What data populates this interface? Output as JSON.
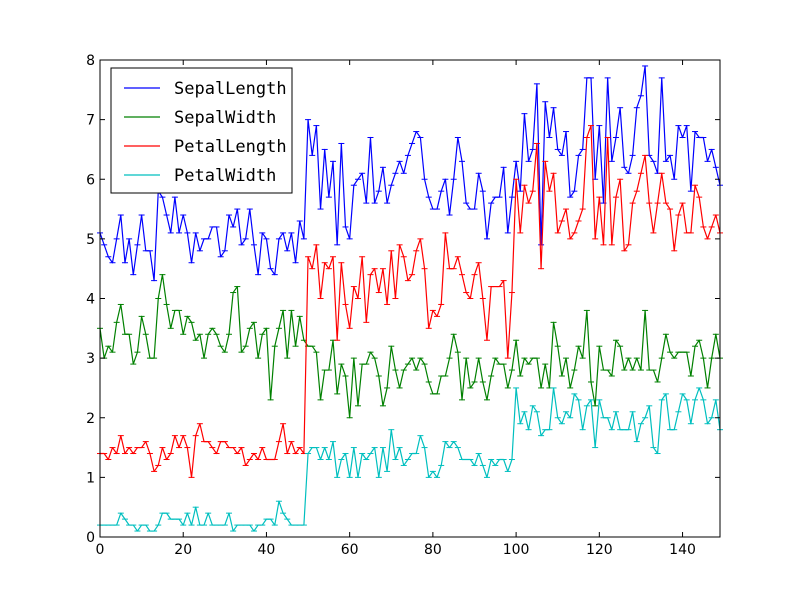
{
  "chart_data": {
    "type": "line",
    "x": [
      0,
      1,
      2,
      3,
      4,
      5,
      6,
      7,
      8,
      9,
      10,
      11,
      12,
      13,
      14,
      15,
      16,
      17,
      18,
      19,
      20,
      21,
      22,
      23,
      24,
      25,
      26,
      27,
      28,
      29,
      30,
      31,
      32,
      33,
      34,
      35,
      36,
      37,
      38,
      39,
      40,
      41,
      42,
      43,
      44,
      45,
      46,
      47,
      48,
      49,
      50,
      51,
      52,
      53,
      54,
      55,
      56,
      57,
      58,
      59,
      60,
      61,
      62,
      63,
      64,
      65,
      66,
      67,
      68,
      69,
      70,
      71,
      72,
      73,
      74,
      75,
      76,
      77,
      78,
      79,
      80,
      81,
      82,
      83,
      84,
      85,
      86,
      87,
      88,
      89,
      90,
      91,
      92,
      93,
      94,
      95,
      96,
      97,
      98,
      99,
      100,
      101,
      102,
      103,
      104,
      105,
      106,
      107,
      108,
      109,
      110,
      111,
      112,
      113,
      114,
      115,
      116,
      117,
      118,
      119,
      120,
      121,
      122,
      123,
      124,
      125,
      126,
      127,
      128,
      129,
      130,
      131,
      132,
      133,
      134,
      135,
      136,
      137,
      138,
      139,
      140,
      141,
      142,
      143,
      144,
      145,
      146,
      147,
      148,
      149
    ],
    "series": [
      {
        "name": "SepalLength",
        "color": "#0000ff",
        "values": [
          5.1,
          4.9,
          4.7,
          4.6,
          5.0,
          5.4,
          4.6,
          5.0,
          4.4,
          4.9,
          5.4,
          4.8,
          4.8,
          4.3,
          5.8,
          5.7,
          5.4,
          5.1,
          5.7,
          5.1,
          5.4,
          5.1,
          4.6,
          5.1,
          4.8,
          5.0,
          5.0,
          5.2,
          5.2,
          4.7,
          4.8,
          5.4,
          5.2,
          5.5,
          4.9,
          5.0,
          5.5,
          4.9,
          4.4,
          5.1,
          5.0,
          4.5,
          4.4,
          5.0,
          5.1,
          4.8,
          5.1,
          4.6,
          5.3,
          5.0,
          7.0,
          6.4,
          6.9,
          5.5,
          6.5,
          5.7,
          6.3,
          4.9,
          6.6,
          5.2,
          5.0,
          5.9,
          6.0,
          6.1,
          5.6,
          6.7,
          5.6,
          5.8,
          6.2,
          5.6,
          5.9,
          6.1,
          6.3,
          6.1,
          6.4,
          6.6,
          6.8,
          6.7,
          6.0,
          5.7,
          5.5,
          5.5,
          5.8,
          6.0,
          5.4,
          6.0,
          6.7,
          6.3,
          5.6,
          5.5,
          5.5,
          6.1,
          5.8,
          5.0,
          5.6,
          5.7,
          5.7,
          6.2,
          5.1,
          5.7,
          6.3,
          5.8,
          7.1,
          6.3,
          6.5,
          7.6,
          4.9,
          7.3,
          6.7,
          7.2,
          6.5,
          6.4,
          6.8,
          5.7,
          5.8,
          6.4,
          6.5,
          7.7,
          7.7,
          6.0,
          6.9,
          5.6,
          7.7,
          6.3,
          6.7,
          7.2,
          6.2,
          6.1,
          6.4,
          7.2,
          7.4,
          7.9,
          6.4,
          6.3,
          6.1,
          7.7,
          6.3,
          6.4,
          6.0,
          6.9,
          6.7,
          6.9,
          5.8,
          6.8,
          6.7,
          6.7,
          6.3,
          6.5,
          6.2,
          5.9
        ]
      },
      {
        "name": "SepalWidth",
        "color": "#008000",
        "values": [
          3.5,
          3.0,
          3.2,
          3.1,
          3.6,
          3.9,
          3.4,
          3.4,
          2.9,
          3.1,
          3.7,
          3.4,
          3.0,
          3.0,
          4.0,
          4.4,
          3.9,
          3.5,
          3.8,
          3.8,
          3.4,
          3.7,
          3.6,
          3.3,
          3.4,
          3.0,
          3.4,
          3.5,
          3.4,
          3.2,
          3.1,
          3.4,
          4.1,
          4.2,
          3.1,
          3.2,
          3.5,
          3.6,
          3.0,
          3.4,
          3.5,
          2.3,
          3.2,
          3.5,
          3.8,
          3.0,
          3.8,
          3.2,
          3.7,
          3.3,
          3.2,
          3.2,
          3.1,
          2.3,
          2.8,
          2.8,
          3.3,
          2.4,
          2.9,
          2.7,
          2.0,
          3.0,
          2.2,
          2.9,
          2.9,
          3.1,
          3.0,
          2.7,
          2.2,
          2.5,
          3.2,
          2.8,
          2.5,
          2.8,
          2.9,
          3.0,
          2.8,
          3.0,
          2.9,
          2.6,
          2.4,
          2.4,
          2.7,
          2.7,
          3.0,
          3.4,
          3.1,
          2.3,
          3.0,
          2.5,
          2.6,
          3.0,
          2.6,
          2.3,
          2.7,
          3.0,
          2.9,
          2.9,
          2.5,
          2.8,
          3.3,
          2.7,
          3.0,
          2.9,
          3.0,
          3.0,
          2.5,
          2.9,
          2.5,
          3.6,
          3.2,
          2.7,
          3.0,
          2.5,
          2.8,
          3.2,
          3.0,
          3.8,
          2.6,
          2.2,
          3.2,
          2.8,
          2.8,
          2.7,
          3.3,
          3.2,
          2.8,
          3.0,
          2.8,
          3.0,
          2.8,
          3.8,
          2.8,
          2.8,
          2.6,
          3.0,
          3.4,
          3.1,
          3.0,
          3.1,
          3.1,
          3.1,
          2.7,
          3.2,
          3.3,
          3.0,
          2.5,
          3.0,
          3.4,
          3.0
        ]
      },
      {
        "name": "PetalLength",
        "color": "#ff0000",
        "values": [
          1.4,
          1.4,
          1.3,
          1.5,
          1.4,
          1.7,
          1.4,
          1.5,
          1.4,
          1.5,
          1.5,
          1.6,
          1.4,
          1.1,
          1.2,
          1.5,
          1.3,
          1.4,
          1.7,
          1.5,
          1.7,
          1.5,
          1.0,
          1.7,
          1.9,
          1.6,
          1.6,
          1.5,
          1.4,
          1.6,
          1.6,
          1.5,
          1.5,
          1.4,
          1.5,
          1.2,
          1.3,
          1.4,
          1.3,
          1.5,
          1.3,
          1.3,
          1.3,
          1.6,
          1.9,
          1.4,
          1.6,
          1.4,
          1.5,
          1.4,
          4.7,
          4.5,
          4.9,
          4.0,
          4.6,
          4.5,
          4.7,
          3.3,
          4.6,
          3.9,
          3.5,
          4.2,
          4.0,
          4.7,
          3.6,
          4.4,
          4.5,
          4.1,
          4.5,
          3.9,
          4.8,
          4.0,
          4.9,
          4.7,
          4.3,
          4.4,
          4.8,
          5.0,
          4.5,
          3.5,
          3.8,
          3.7,
          3.9,
          5.1,
          4.5,
          4.5,
          4.7,
          4.4,
          4.1,
          4.0,
          4.4,
          4.6,
          4.0,
          3.3,
          4.2,
          4.2,
          4.2,
          4.3,
          3.0,
          4.1,
          6.0,
          5.1,
          5.9,
          5.6,
          5.8,
          6.6,
          4.5,
          6.3,
          5.8,
          6.1,
          5.1,
          5.3,
          5.5,
          5.0,
          5.1,
          5.3,
          5.5,
          6.7,
          6.9,
          5.0,
          5.7,
          4.9,
          6.7,
          4.9,
          5.7,
          6.0,
          4.8,
          4.9,
          5.6,
          5.8,
          6.1,
          6.4,
          5.6,
          5.1,
          5.6,
          6.1,
          5.6,
          5.5,
          4.8,
          5.4,
          5.6,
          5.1,
          5.1,
          5.9,
          5.7,
          5.2,
          5.0,
          5.2,
          5.4,
          5.1
        ]
      },
      {
        "name": "PetalWidth",
        "color": "#00bfbf",
        "values": [
          0.2,
          0.2,
          0.2,
          0.2,
          0.2,
          0.4,
          0.3,
          0.2,
          0.2,
          0.1,
          0.2,
          0.2,
          0.1,
          0.1,
          0.2,
          0.4,
          0.4,
          0.3,
          0.3,
          0.3,
          0.2,
          0.4,
          0.2,
          0.5,
          0.2,
          0.2,
          0.4,
          0.2,
          0.2,
          0.2,
          0.2,
          0.4,
          0.1,
          0.2,
          0.2,
          0.2,
          0.2,
          0.1,
          0.2,
          0.2,
          0.3,
          0.3,
          0.2,
          0.6,
          0.4,
          0.3,
          0.2,
          0.2,
          0.2,
          0.2,
          1.4,
          1.5,
          1.5,
          1.3,
          1.5,
          1.3,
          1.6,
          1.0,
          1.3,
          1.4,
          1.0,
          1.5,
          1.0,
          1.4,
          1.3,
          1.4,
          1.5,
          1.0,
          1.5,
          1.1,
          1.8,
          1.3,
          1.5,
          1.2,
          1.3,
          1.4,
          1.4,
          1.7,
          1.5,
          1.0,
          1.1,
          1.0,
          1.2,
          1.6,
          1.5,
          1.6,
          1.5,
          1.3,
          1.3,
          1.3,
          1.2,
          1.4,
          1.2,
          1.0,
          1.3,
          1.2,
          1.3,
          1.3,
          1.1,
          1.3,
          2.5,
          1.9,
          2.1,
          1.8,
          2.2,
          2.1,
          1.7,
          1.8,
          1.8,
          2.5,
          2.0,
          1.9,
          2.1,
          2.0,
          2.4,
          2.3,
          1.8,
          2.2,
          2.3,
          1.5,
          2.3,
          2.0,
          2.0,
          1.8,
          2.1,
          1.8,
          1.8,
          1.8,
          2.1,
          1.6,
          1.9,
          2.0,
          2.2,
          1.5,
          1.4,
          2.3,
          2.4,
          1.8,
          1.8,
          2.1,
          2.4,
          2.3,
          1.9,
          2.3,
          2.5,
          2.3,
          1.9,
          2.0,
          2.3,
          1.8
        ]
      }
    ],
    "xlim": [
      0,
      149
    ],
    "ylim": [
      0,
      8
    ],
    "xticks": [
      0,
      20,
      40,
      60,
      80,
      100,
      120,
      140
    ],
    "yticks": [
      0,
      1,
      2,
      3,
      4,
      5,
      6,
      7,
      8
    ],
    "xtick_labels": [
      "0",
      "20",
      "40",
      "60",
      "80",
      "100",
      "120",
      "140"
    ],
    "ytick_labels": [
      "0",
      "1",
      "2",
      "3",
      "4",
      "5",
      "6",
      "7",
      "8"
    ],
    "legend_position": "top-left",
    "marker": "hline",
    "grid": false,
    "title": "",
    "xlabel": "",
    "ylabel": ""
  }
}
